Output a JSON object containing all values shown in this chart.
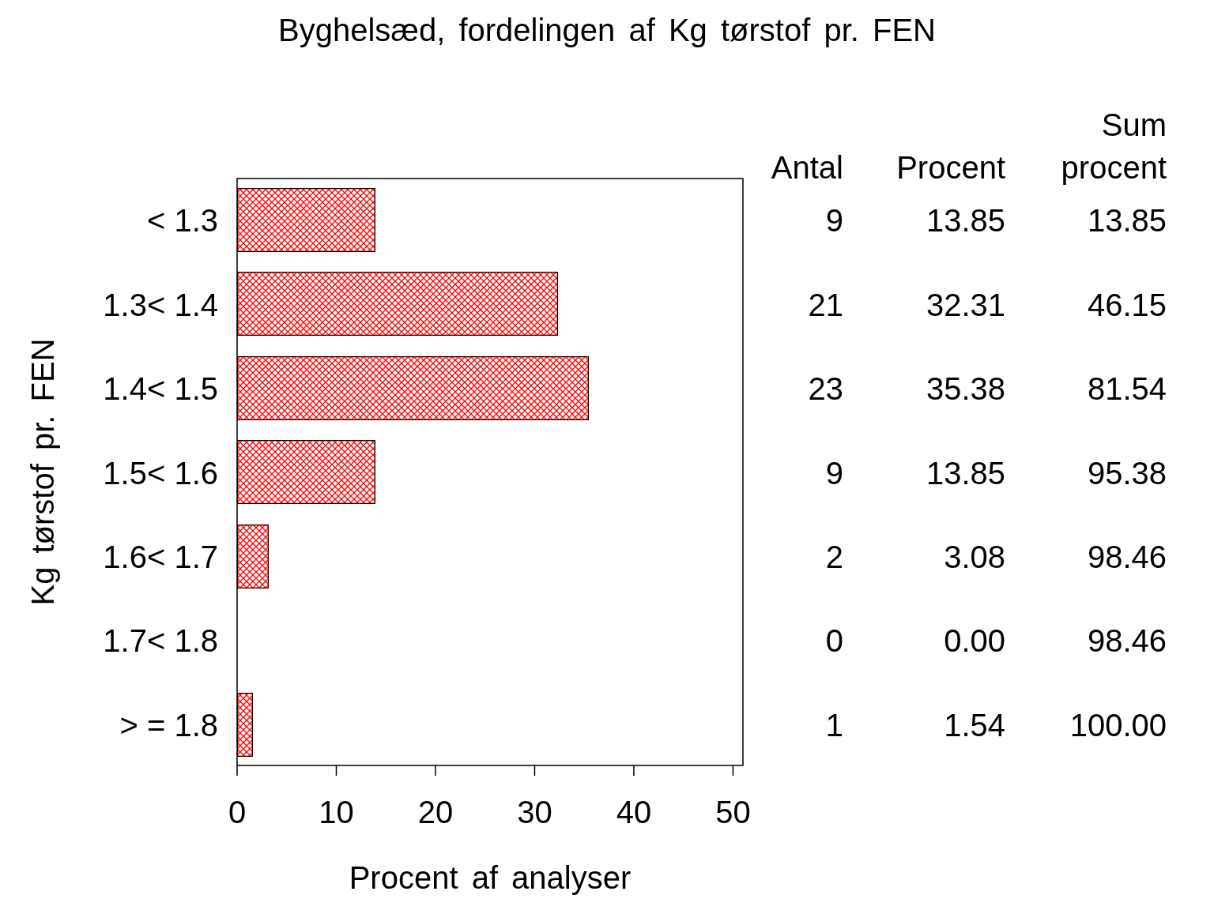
{
  "chart_data": {
    "type": "bar",
    "orientation": "horizontal",
    "title": "Byghelsæd, fordelingen af Kg tørstof pr. FEN",
    "xlabel": "Procent af analyser",
    "ylabel": "Kg tørstof pr. FEN",
    "categories": [
      "< 1.3",
      "1.3< 1.4",
      "1.4< 1.5",
      "1.5< 1.6",
      "1.6< 1.7",
      "1.7< 1.8",
      "> = 1.8"
    ],
    "values": [
      13.85,
      32.31,
      35.38,
      13.85,
      3.08,
      0,
      1.54
    ],
    "color": "#ff0000",
    "xlim": [
      0,
      51
    ],
    "xticks": [
      0,
      10,
      20,
      30,
      40,
      50
    ],
    "value_labels": [
      "13.85",
      "32.31",
      "35.38",
      "13.85",
      "3.08",
      "0.00",
      "1.54"
    ],
    "annotations": [
      "Antal",
      "Procent",
      "Sum procent",
      "9",
      "21",
      "23",
      "9",
      "2",
      "0",
      "1",
      "13.85",
      "46.15",
      "81.54",
      "95.38",
      "98.46",
      "98.46",
      "100.00"
    ]
  }
}
